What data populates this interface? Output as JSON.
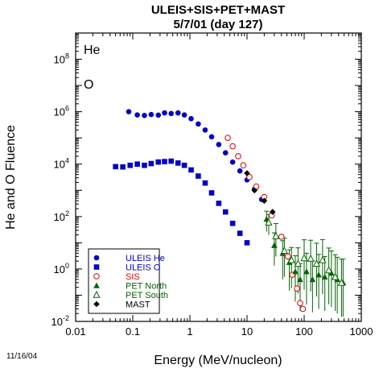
{
  "chart_data": {
    "type": "scatter",
    "title": "ULEIS+SIS+PET+MAST",
    "subtitle": "5/7/01 (day 127)",
    "xlabel": "Energy (MeV/nucleon)",
    "ylabel": "He and O Fluence",
    "xscale": "log",
    "yscale": "log",
    "xlim": [
      0.01,
      1000
    ],
    "ylim": [
      0.01,
      1000000000
    ],
    "x_ticks": [
      {
        "v": 0.01,
        "label": "0.01"
      },
      {
        "v": 0.1,
        "label": "0.1"
      },
      {
        "v": 1,
        "label": "1"
      },
      {
        "v": 10,
        "label": "10"
      },
      {
        "v": 100,
        "label": "100"
      },
      {
        "v": 1000,
        "label": "1000"
      }
    ],
    "y_ticks": [
      {
        "v": 0.01,
        "base": "10",
        "exp": "-2"
      },
      {
        "v": 1,
        "base": "10",
        "exp": "0"
      },
      {
        "v": 100,
        "base": "10",
        "exp": "2"
      },
      {
        "v": 10000,
        "base": "10",
        "exp": "4"
      },
      {
        "v": 1000000,
        "base": "10",
        "exp": "6"
      },
      {
        "v": 100000000,
        "base": "10",
        "exp": "8"
      }
    ],
    "annotations": [
      "He",
      "O"
    ],
    "date_stamp": "11/16/04",
    "legend_position": "bottom-left",
    "series": [
      {
        "name": "ULEIS He",
        "marker": "circle-filled",
        "color": "#0000cc",
        "points": [
          [
            0.085,
            1000000
          ],
          [
            0.12,
            750000
          ],
          [
            0.16,
            720000
          ],
          [
            0.21,
            780000
          ],
          [
            0.28,
            740000
          ],
          [
            0.36,
            900000
          ],
          [
            0.47,
            850000
          ],
          [
            0.62,
            900000
          ],
          [
            0.8,
            750000
          ],
          [
            1.05,
            540000
          ],
          [
            1.4,
            340000
          ],
          [
            1.85,
            200000
          ],
          [
            2.4,
            110000
          ],
          [
            3.2,
            56000
          ],
          [
            4.2,
            27000
          ],
          [
            5.6,
            12000
          ],
          [
            7.5,
            5500
          ],
          [
            10,
            2500
          ],
          [
            13.5,
            1100
          ],
          [
            18,
            450
          ]
        ]
      },
      {
        "name": "ULEIS O",
        "marker": "square-filled",
        "color": "#0000cc",
        "points": [
          [
            0.05,
            8000
          ],
          [
            0.067,
            7800
          ],
          [
            0.09,
            9000
          ],
          [
            0.12,
            10000
          ],
          [
            0.16,
            9000
          ],
          [
            0.21,
            10500
          ],
          [
            0.28,
            12000
          ],
          [
            0.36,
            12500
          ],
          [
            0.47,
            13000
          ],
          [
            0.62,
            11000
          ],
          [
            0.8,
            9000
          ],
          [
            1.05,
            6000
          ],
          [
            1.4,
            3500
          ],
          [
            1.85,
            1900
          ],
          [
            2.4,
            800
          ],
          [
            3.2,
            320
          ],
          [
            4.2,
            150
          ],
          [
            5.6,
            55
          ],
          [
            7.5,
            23
          ],
          [
            10,
            10
          ]
        ]
      },
      {
        "name": "SIS",
        "marker": "circle-open",
        "color": "#dd0000",
        "points": [
          [
            4.6,
            100000
          ],
          [
            5.6,
            48000
          ],
          [
            7,
            20000
          ],
          [
            8.6,
            9000
          ],
          [
            11,
            3200
          ],
          [
            14.5,
            1400
          ],
          [
            20,
            550
          ],
          [
            27,
            110
          ],
          [
            40,
            17
          ],
          [
            52,
            3
          ],
          [
            62,
            0.6
          ],
          [
            75,
            0.18
          ],
          [
            85,
            0.05
          ],
          [
            95,
            0.03
          ]
        ]
      },
      {
        "name": "PET North",
        "marker": "triangle-filled",
        "color": "#006600",
        "points": [
          [
            22,
            80
          ],
          [
            30,
            8
          ],
          [
            42,
            4
          ],
          [
            55,
            1.8
          ],
          [
            70,
            0.8
          ],
          [
            85,
            0.4
          ],
          [
            110,
            0.8
          ],
          [
            140,
            0.4
          ],
          [
            180,
            0.6
          ],
          [
            230,
            0.5
          ],
          [
            300,
            0.7
          ],
          [
            380,
            0.4
          ],
          [
            480,
            0.3
          ]
        ],
        "err_hi": [
          2,
          3,
          3,
          3,
          4,
          4,
          5,
          5,
          6,
          6,
          7,
          7,
          8
        ],
        "err_lo": [
          3,
          6,
          10,
          12,
          14,
          16,
          18,
          18,
          20,
          20,
          20,
          20,
          20
        ]
      },
      {
        "name": "PET South",
        "marker": "triangle-open",
        "color": "#006600",
        "points": [
          [
            24,
            60
          ],
          [
            32,
            18
          ],
          [
            45,
            5
          ],
          [
            60,
            2.2
          ],
          [
            78,
            1.6
          ],
          [
            100,
            2.6
          ],
          [
            130,
            2.5
          ],
          [
            165,
            1.6
          ],
          [
            210,
            2.2
          ],
          [
            270,
            0.9
          ],
          [
            350,
            0.5
          ],
          [
            450,
            0.3
          ]
        ],
        "err_hi": [
          2,
          3,
          3,
          3,
          4,
          5,
          5,
          6,
          6,
          7,
          7,
          8
        ],
        "err_lo": [
          3,
          6,
          10,
          12,
          14,
          16,
          18,
          18,
          20,
          20,
          20,
          20
        ]
      },
      {
        "name": "MAST",
        "marker": "diamond-filled",
        "color": "#000000",
        "points": [
          [
            10,
            4500
          ],
          [
            13.5,
            1000
          ],
          [
            20,
            400
          ],
          [
            28,
            150
          ]
        ]
      }
    ]
  }
}
